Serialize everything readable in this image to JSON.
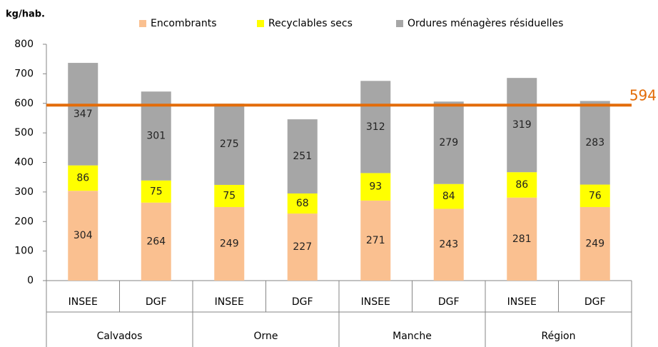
{
  "chart_data": {
    "type": "bar",
    "stacked": true,
    "y_label": "kg/hab.",
    "categories": [
      "INSEE",
      "DGF",
      "INSEE",
      "DGF",
      "INSEE",
      "DGF",
      "INSEE",
      "DGF"
    ],
    "groups": [
      "Calvados",
      "Orne",
      "Manche",
      "Région"
    ],
    "series": [
      {
        "name": "Encombrants",
        "color": "#fac090",
        "values": [
          304,
          264,
          249,
          227,
          271,
          243,
          281,
          249
        ]
      },
      {
        "name": "Recyclables secs",
        "color": "#ffff00",
        "values": [
          86,
          75,
          75,
          68,
          93,
          84,
          86,
          76
        ]
      },
      {
        "name": "Ordures ménagères résiduelles",
        "color": "#a6a6a6",
        "values": [
          347,
          301,
          275,
          251,
          312,
          279,
          319,
          283
        ]
      }
    ],
    "reference_line": {
      "value": 594,
      "color": "#e36c09"
    },
    "ylim": [
      0,
      800
    ],
    "yticks": [
      0,
      100,
      200,
      300,
      400,
      500,
      600,
      700,
      800
    ],
    "grid": false,
    "legend_position": "top"
  }
}
